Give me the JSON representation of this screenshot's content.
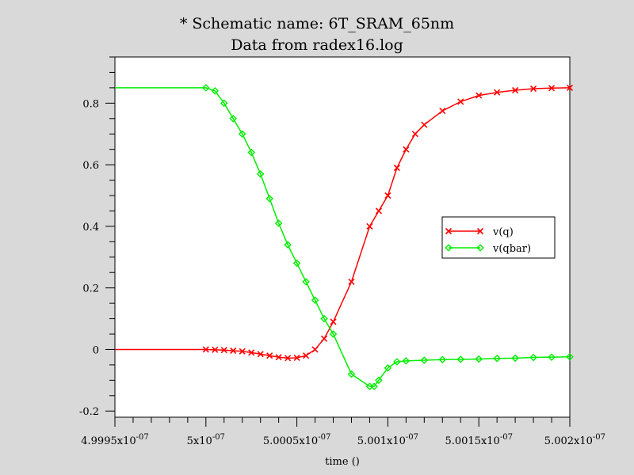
{
  "chart_data": {
    "type": "line",
    "title": "* Schematic name: 6T_SRAM_65nm",
    "subtitle": "Data from radex16.log",
    "xlabel": "time ()",
    "ylabel": "",
    "xlim": [
      4.9995e-07,
      5.002e-07
    ],
    "ylim": [
      -0.22,
      0.95
    ],
    "grid": false,
    "legend_placement": "right",
    "x_ticks": [
      {
        "value": 4.9995e-07,
        "mantissa": "4.9995x10",
        "exp": "-07"
      },
      {
        "value": 5e-07,
        "mantissa": "5x10",
        "exp": "-07"
      },
      {
        "value": 5.0005e-07,
        "mantissa": "5.0005x10",
        "exp": "-07"
      },
      {
        "value": 5.001e-07,
        "mantissa": "5.001x10",
        "exp": "-07"
      },
      {
        "value": 5.0015e-07,
        "mantissa": "5.0015x10",
        "exp": "-07"
      },
      {
        "value": 5.002e-07,
        "mantissa": "5.002x10",
        "exp": "-07"
      }
    ],
    "y_ticks": [
      {
        "value": -0.2,
        "label": "-0.2"
      },
      {
        "value": 0,
        "label": "0"
      },
      {
        "value": 0.2,
        "label": "0.2"
      },
      {
        "value": 0.4,
        "label": "0.4"
      },
      {
        "value": 0.6,
        "label": "0.6"
      },
      {
        "value": 0.8,
        "label": "0.8"
      }
    ],
    "series": [
      {
        "name": "v(q)",
        "color": "#ff0000",
        "marker": "x",
        "x": [
          4.9995e-07,
          5e-07,
          5.00005e-07,
          5.0001e-07,
          5.00015e-07,
          5.0002e-07,
          5.00025e-07,
          5.0003e-07,
          5.00035e-07,
          5.0004e-07,
          5.00045e-07,
          5.0005e-07,
          5.00055e-07,
          5.0006e-07,
          5.00065e-07,
          5.0007e-07,
          5.0008e-07,
          5.0009e-07,
          5.00095e-07,
          5.001e-07,
          5.00105e-07,
          5.0011e-07,
          5.00115e-07,
          5.0012e-07,
          5.0013e-07,
          5.0014e-07,
          5.0015e-07,
          5.0016e-07,
          5.0017e-07,
          5.0018e-07,
          5.0019e-07,
          5.002e-07
        ],
        "y": [
          0,
          0,
          -0.001,
          -0.002,
          -0.004,
          -0.006,
          -0.01,
          -0.015,
          -0.02,
          -0.025,
          -0.028,
          -0.027,
          -0.02,
          0.0,
          0.035,
          0.09,
          0.22,
          0.4,
          0.45,
          0.5,
          0.59,
          0.65,
          0.7,
          0.73,
          0.775,
          0.805,
          0.825,
          0.835,
          0.842,
          0.847,
          0.849,
          0.85
        ]
      },
      {
        "name": "v(qbar)",
        "color": "#00ee00",
        "marker": "diamond",
        "x": [
          4.9995e-07,
          5e-07,
          5.00005e-07,
          5.0001e-07,
          5.00015e-07,
          5.0002e-07,
          5.00025e-07,
          5.0003e-07,
          5.00035e-07,
          5.0004e-07,
          5.00045e-07,
          5.0005e-07,
          5.00055e-07,
          5.0006e-07,
          5.00065e-07,
          5.0007e-07,
          5.0008e-07,
          5.0009e-07,
          5.000925e-07,
          5.00095e-07,
          5.001e-07,
          5.00105e-07,
          5.0011e-07,
          5.0012e-07,
          5.0013e-07,
          5.0014e-07,
          5.0015e-07,
          5.0016e-07,
          5.0017e-07,
          5.0018e-07,
          5.0019e-07,
          5.002e-07
        ],
        "y": [
          0.85,
          0.85,
          0.84,
          0.8,
          0.75,
          0.7,
          0.64,
          0.57,
          0.49,
          0.41,
          0.34,
          0.28,
          0.22,
          0.16,
          0.1,
          0.05,
          -0.08,
          -0.12,
          -0.12,
          -0.1,
          -0.06,
          -0.04,
          -0.037,
          -0.035,
          -0.033,
          -0.032,
          -0.031,
          -0.029,
          -0.028,
          -0.026,
          -0.025,
          -0.024
        ]
      }
    ]
  }
}
